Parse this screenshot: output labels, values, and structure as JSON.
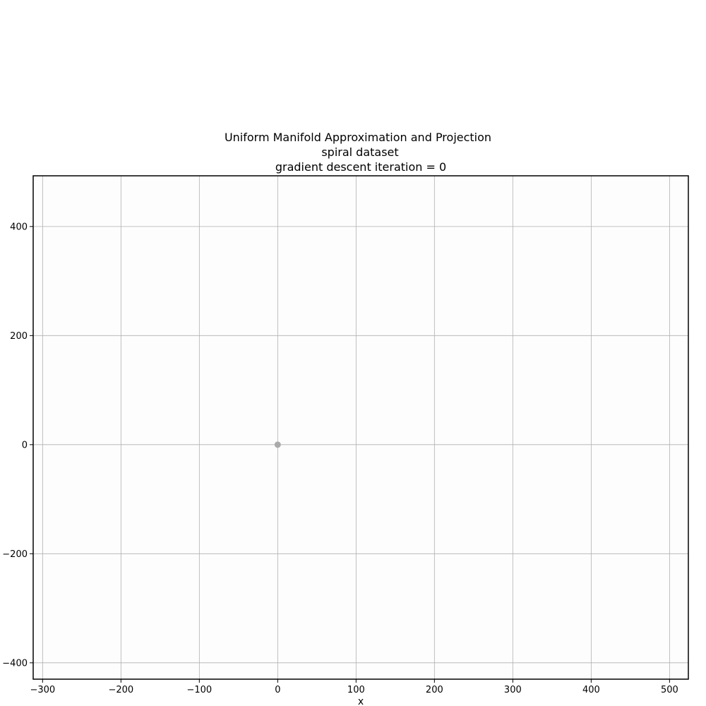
{
  "chart_data": {
    "type": "scatter",
    "title_lines": [
      "Uniform Manifold Approximation and Projection",
      "spiral dataset",
      "gradient descent iteration = 0"
    ],
    "xlabel": "x",
    "ylabel": "",
    "xlim": [
      -312,
      524
    ],
    "ylim": [
      -430,
      493
    ],
    "xticks": [
      -300,
      -200,
      -100,
      0,
      100,
      200,
      300,
      400,
      500
    ],
    "yticks": [
      -400,
      -200,
      0,
      200,
      400
    ],
    "grid": true,
    "series": [
      {
        "color": "#aaaaaa",
        "points": [
          [
            0,
            0
          ]
        ]
      }
    ]
  }
}
